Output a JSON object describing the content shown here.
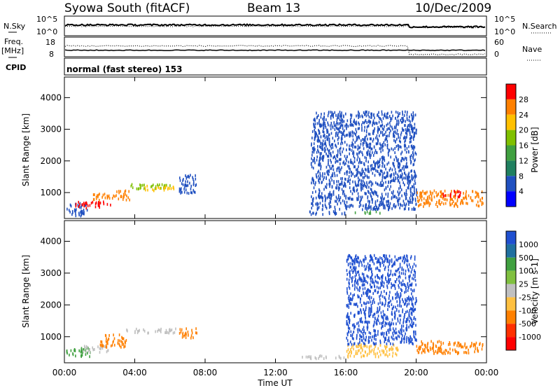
{
  "header": {
    "station": "Syowa South (fitACF)",
    "beam": "Beam 13",
    "date": "10/Dec/2009"
  },
  "params": {
    "nsky_label": "N.Sky",
    "nsky_ticks": [
      "10^5",
      "10^0"
    ],
    "nsearch_label": "N.Search",
    "nsearch_ticks": [
      "10^5",
      "10^0"
    ],
    "freq_label": "Freq.",
    "freq_unit": "[MHz]",
    "freq_ticks": [
      "18",
      "8"
    ],
    "nave_label": "Nave",
    "nave_ticks": [
      "60",
      "0"
    ],
    "cpid_label": "CPID",
    "cpid_text": "normal (fast stereo) 153"
  },
  "chart_data": [
    {
      "type": "heatmap",
      "title": "",
      "xlabel": "Time UT",
      "ylabel": "Slant Range [km]",
      "xlim_hours": [
        0,
        24
      ],
      "ylim_km": [
        180,
        4650
      ],
      "x_ticks": [
        "00:00",
        "04:00",
        "08:00",
        "12:00",
        "16:00",
        "20:00",
        "00:00"
      ],
      "y_ticks": [
        "1000",
        "2000",
        "3000",
        "4000"
      ],
      "colorbar": {
        "label": "Power [dB]",
        "ticks": [
          "28",
          "24",
          "20",
          "16",
          "12",
          "8",
          "4"
        ],
        "colors": [
          "#ff0000",
          "#ff8000",
          "#ffc000",
          "#80c000",
          "#40a040",
          "#208060",
          "#2050c0",
          "#0000ff"
        ]
      },
      "regions": [
        {
          "t0": 0.1,
          "t1": 1.3,
          "r0": 300,
          "r1": 700,
          "color": "#2050c0"
        },
        {
          "t0": 0.6,
          "t1": 2.6,
          "r0": 550,
          "r1": 750,
          "color": "#ff0000"
        },
        {
          "t0": 1.5,
          "t1": 2.8,
          "r0": 800,
          "r1": 1000,
          "color": "#ff8000"
        },
        {
          "t0": 2.8,
          "t1": 3.7,
          "r0": 800,
          "r1": 1100,
          "color": "#ff8000"
        },
        {
          "t0": 3.7,
          "t1": 6.2,
          "r0": 1150,
          "r1": 1300,
          "color": "#80c000"
        },
        {
          "t0": 4.5,
          "t1": 6.2,
          "r0": 1100,
          "r1": 1250,
          "color": "#ffc000"
        },
        {
          "t0": 6.5,
          "t1": 7.5,
          "r0": 1000,
          "r1": 1600,
          "color": "#2050c0"
        },
        {
          "t0": 13.6,
          "t1": 16.0,
          "r0": 350,
          "r1": 450,
          "color": "#2050c0"
        },
        {
          "t0": 16.5,
          "t1": 18.0,
          "r0": 380,
          "r1": 450,
          "color": "#40a040"
        },
        {
          "t0": 14.0,
          "t1": 20.0,
          "r0": 500,
          "r1": 3600,
          "color": "#2050c0"
        },
        {
          "t0": 20.0,
          "t1": 23.8,
          "r0": 600,
          "r1": 1100,
          "color": "#ff8000"
        },
        {
          "t0": 21.5,
          "t1": 22.5,
          "r0": 900,
          "r1": 1100,
          "color": "#ff0000"
        }
      ]
    },
    {
      "type": "heatmap",
      "title": "",
      "xlabel": "Time UT",
      "ylabel": "Slant Range [km]",
      "xlim_hours": [
        0,
        24
      ],
      "ylim_km": [
        180,
        4650
      ],
      "x_ticks": [
        "00:00",
        "04:00",
        "08:00",
        "12:00",
        "16:00",
        "20:00",
        "00:00"
      ],
      "y_ticks": [
        "1000",
        "2000",
        "3000",
        "4000"
      ],
      "colorbar": {
        "label": "Velocity [m s-1]",
        "ticks": [
          "1000",
          "500",
          "100",
          "25",
          "-25",
          "-100",
          "-500",
          "-1000"
        ],
        "colors": [
          "#2050d0",
          "#2070a0",
          "#40a040",
          "#80c040",
          "#c0c0c0",
          "#ffc040",
          "#ff8000",
          "#ff3000",
          "#ff0000"
        ]
      },
      "regions": [
        {
          "t0": 0.1,
          "t1": 1.5,
          "r0": 400,
          "r1": 700,
          "color": "#40a040"
        },
        {
          "t0": 1.0,
          "t1": 2.5,
          "r0": 550,
          "r1": 750,
          "color": "#c0c0c0"
        },
        {
          "t0": 2.0,
          "t1": 3.5,
          "r0": 700,
          "r1": 1100,
          "color": "#ff8000"
        },
        {
          "t0": 3.5,
          "t1": 6.3,
          "r0": 1150,
          "r1": 1300,
          "color": "#c0c0c0"
        },
        {
          "t0": 6.5,
          "t1": 7.5,
          "r0": 1000,
          "r1": 1300,
          "color": "#ff8000"
        },
        {
          "t0": 13.5,
          "t1": 16.0,
          "r0": 350,
          "r1": 450,
          "color": "#c0c0c0"
        },
        {
          "t0": 16.0,
          "t1": 19.0,
          "r0": 400,
          "r1": 800,
          "color": "#ffc040"
        },
        {
          "t0": 16.0,
          "t1": 20.0,
          "r0": 800,
          "r1": 3600,
          "color": "#2050d0"
        },
        {
          "t0": 20.0,
          "t1": 23.8,
          "r0": 500,
          "r1": 900,
          "color": "#ff8000"
        }
      ]
    }
  ],
  "axis_titles": {
    "x": "Time UT",
    "power": "Power [dB]",
    "velocity": "Velocity [m s-1]"
  }
}
